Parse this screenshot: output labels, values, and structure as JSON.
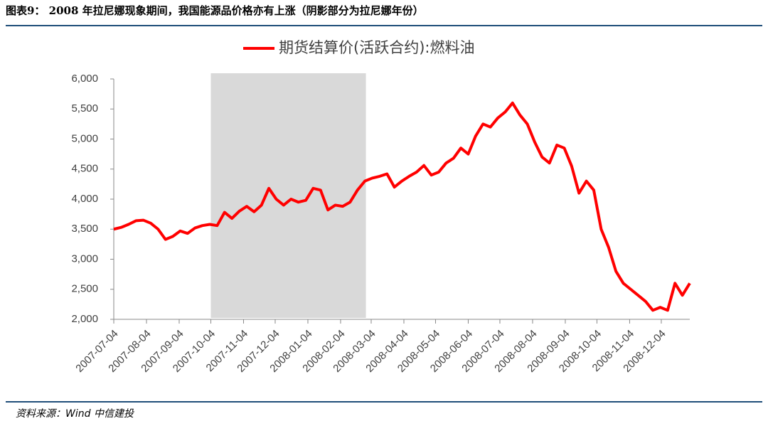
{
  "header": {
    "title": "图表9：  2008 年拉尼娜现象期间，我国能源品价格亦有上涨（阴影部分为拉尼娜年份）"
  },
  "chart_data": {
    "type": "line",
    "legend": "top",
    "shaded_period": [
      "2007-10-04",
      "2008-02-28"
    ],
    "shade_color": "#d9d9d9",
    "x": [
      "2007-07-04",
      "2007-07-11",
      "2007-07-18",
      "2007-07-25",
      "2007-08-01",
      "2007-08-08",
      "2007-08-15",
      "2007-08-22",
      "2007-08-29",
      "2007-09-05",
      "2007-09-12",
      "2007-09-19",
      "2007-09-26",
      "2007-10-03",
      "2007-10-10",
      "2007-10-17",
      "2007-10-24",
      "2007-10-31",
      "2007-11-07",
      "2007-11-14",
      "2007-11-21",
      "2007-11-28",
      "2007-12-05",
      "2007-12-12",
      "2007-12-19",
      "2007-12-26",
      "2008-01-02",
      "2008-01-09",
      "2008-01-16",
      "2008-01-23",
      "2008-01-30",
      "2008-02-06",
      "2008-02-13",
      "2008-02-20",
      "2008-02-27",
      "2008-03-05",
      "2008-03-12",
      "2008-03-19",
      "2008-03-26",
      "2008-04-02",
      "2008-04-09",
      "2008-04-16",
      "2008-04-23",
      "2008-04-30",
      "2008-05-07",
      "2008-05-14",
      "2008-05-21",
      "2008-05-28",
      "2008-06-04",
      "2008-06-11",
      "2008-06-18",
      "2008-06-25",
      "2008-07-02",
      "2008-07-09",
      "2008-07-16",
      "2008-07-23",
      "2008-07-30",
      "2008-08-06",
      "2008-08-13",
      "2008-08-20",
      "2008-08-27",
      "2008-09-03",
      "2008-09-10",
      "2008-09-17",
      "2008-09-24",
      "2008-10-01",
      "2008-10-08",
      "2008-10-15",
      "2008-10-22",
      "2008-10-29",
      "2008-11-05",
      "2008-11-12",
      "2008-11-19",
      "2008-11-26",
      "2008-12-03",
      "2008-12-10",
      "2008-12-17",
      "2008-12-24",
      "2008-12-31"
    ],
    "series": [
      {
        "name": "期货结算价(活跃合约):燃料油",
        "color": "#ff0000",
        "values": [
          3500,
          3530,
          3580,
          3640,
          3650,
          3600,
          3500,
          3330,
          3380,
          3470,
          3430,
          3520,
          3560,
          3580,
          3560,
          3780,
          3680,
          3800,
          3880,
          3790,
          3900,
          4180,
          4000,
          3900,
          4000,
          3950,
          3980,
          4180,
          4150,
          3820,
          3900,
          3880,
          3950,
          4150,
          4300,
          4350,
          4380,
          4420,
          4200,
          4300,
          4380,
          4450,
          4560,
          4400,
          4450,
          4600,
          4680,
          4850,
          4750,
          5050,
          5250,
          5200,
          5350,
          5450,
          5600,
          5400,
          5250,
          4950,
          4700,
          4600,
          4900,
          4850,
          4550,
          4100,
          4300,
          4150,
          3500,
          3200,
          2800,
          2600,
          2500,
          2400,
          2300,
          2150,
          2200,
          2150,
          2600,
          2400,
          2600
        ]
      }
    ],
    "xlim": [
      "2007-07-04",
      "2008-12-31"
    ],
    "xticks": [
      "2007-07-04",
      "2007-08-04",
      "2007-09-04",
      "2007-10-04",
      "2007-11-04",
      "2007-12-04",
      "2008-01-04",
      "2008-02-04",
      "2008-03-04",
      "2008-04-04",
      "2008-05-04",
      "2008-06-04",
      "2008-07-04",
      "2008-08-04",
      "2008-09-04",
      "2008-10-04",
      "2008-11-04",
      "2008-12-04"
    ],
    "ylim": [
      2000,
      6000
    ],
    "yticks": [
      {
        "value": 2000,
        "label": "2,000"
      },
      {
        "value": 2500,
        "label": "2,500"
      },
      {
        "value": 3000,
        "label": "3,000"
      },
      {
        "value": 3500,
        "label": "3,500"
      },
      {
        "value": 4000,
        "label": "4,000"
      },
      {
        "value": 4500,
        "label": "4,500"
      },
      {
        "value": 5000,
        "label": "5,000"
      },
      {
        "value": 5500,
        "label": "5,500"
      },
      {
        "value": 6000,
        "label": "6,000"
      }
    ]
  },
  "footer": {
    "source": "资料来源：Wind  中信建投"
  }
}
